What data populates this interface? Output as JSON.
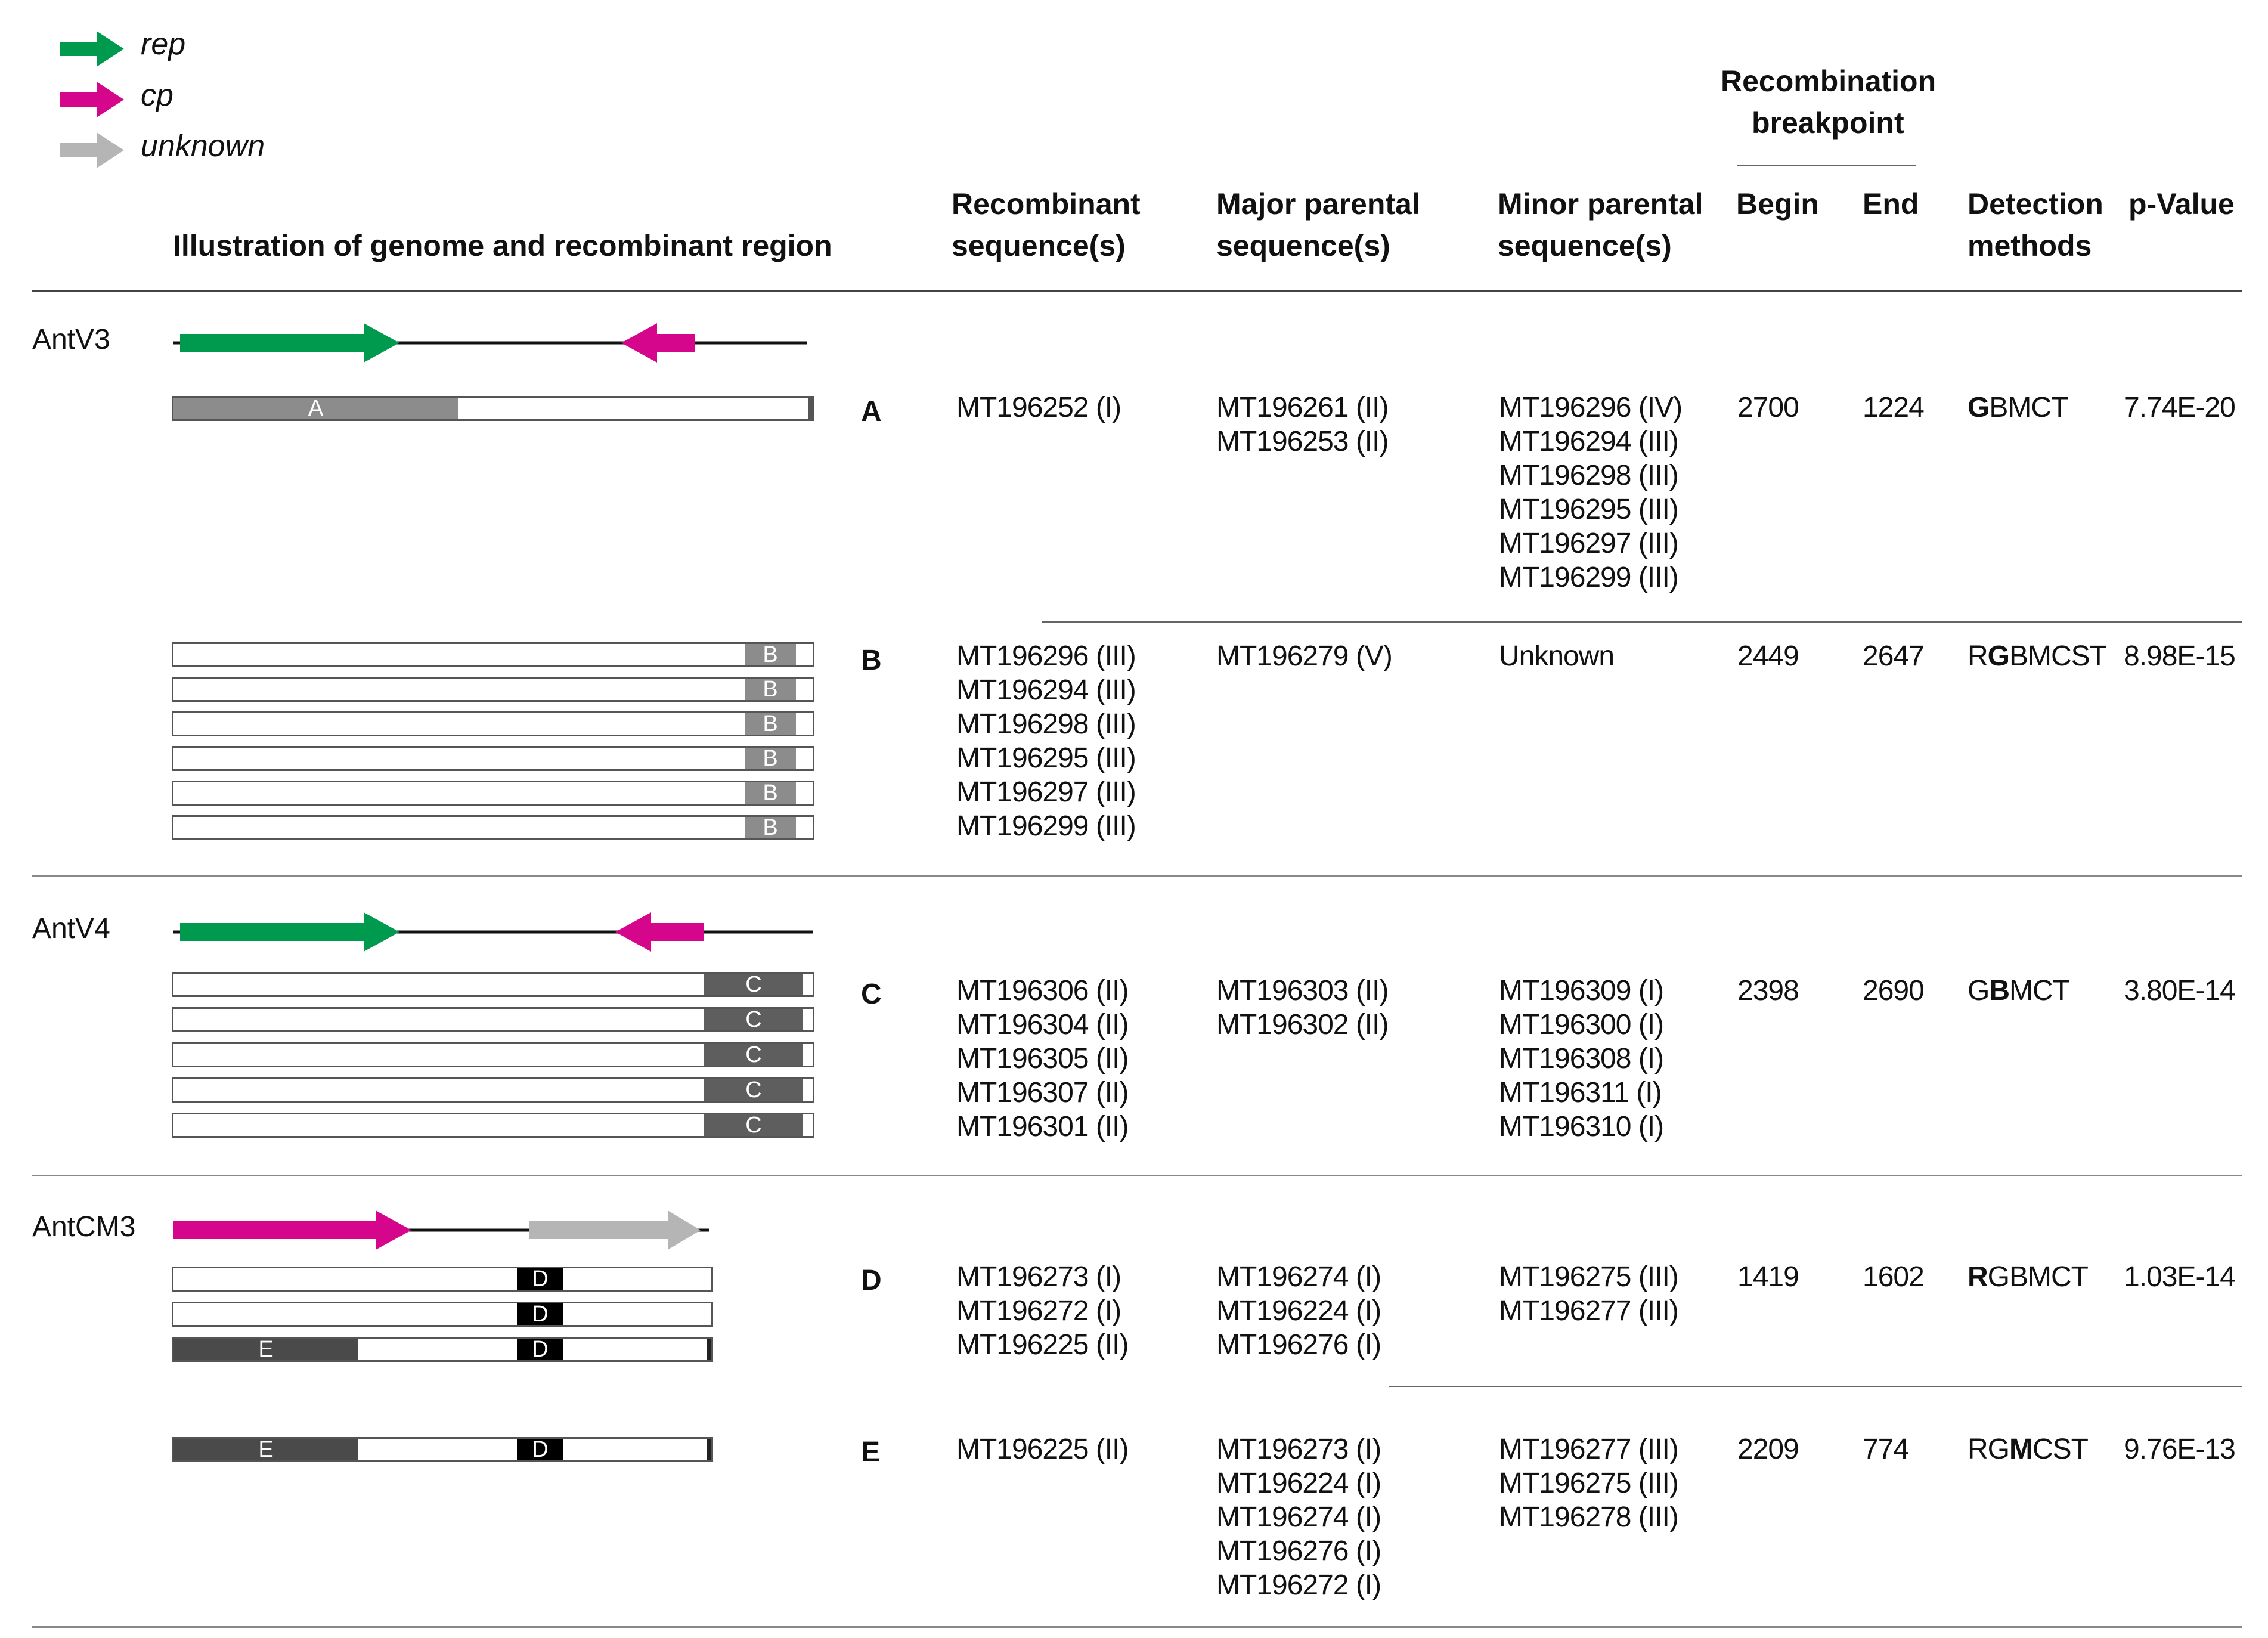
{
  "legend": {
    "items": [
      {
        "label": "rep",
        "color": "#009a4e"
      },
      {
        "label": "cp",
        "color": "#d6068c"
      },
      {
        "label": "unknown",
        "color": "#b5b5b5"
      }
    ]
  },
  "header": {
    "illustration": "Illustration of genome and recombinant region",
    "recombinant": [
      "Recombinant",
      "sequence(s)"
    ],
    "major": [
      "Major parental",
      "sequence(s)"
    ],
    "minor": [
      "Minor parental",
      "sequence(s)"
    ],
    "breakpoint": [
      "Recombination",
      "breakpoint"
    ],
    "begin": "Begin",
    "end": "End",
    "detection": [
      "Detection",
      "methods"
    ],
    "pvalue": "p-Value"
  },
  "viruses": [
    "AntV3",
    "AntV4",
    "AntCM3"
  ],
  "segment_labels": {
    "A": "A",
    "B": "B",
    "C": "C",
    "D": "D",
    "E": "E"
  },
  "rows": [
    {
      "event": "A",
      "recombinant": [
        "MT196252 (I)"
      ],
      "major": [
        "MT196261 (II)",
        "MT196253 (II)"
      ],
      "minor": [
        "MT196296 (IV)",
        "MT196294 (III)",
        "MT196298 (III)",
        "MT196295 (III)",
        "MT196297 (III)",
        "MT196299 (III)"
      ],
      "begin": "2700",
      "end": "1224",
      "methods": {
        "pre": "",
        "bold": "G",
        "post": "BMCT"
      },
      "pvalue": "7.74E-20"
    },
    {
      "event": "B",
      "recombinant": [
        "MT196296 (III)",
        "MT196294 (III)",
        "MT196298 (III)",
        "MT196295 (III)",
        "MT196297 (III)",
        "MT196299 (III)"
      ],
      "major": [
        "MT196279 (V)"
      ],
      "minor": [
        "Unknown"
      ],
      "begin": "2449",
      "end": "2647",
      "methods": {
        "pre": "R",
        "bold": "G",
        "post": "BMCST"
      },
      "pvalue": "8.98E-15"
    },
    {
      "event": "C",
      "recombinant": [
        "MT196306 (II)",
        "MT196304 (II)",
        "MT196305 (II)",
        "MT196307 (II)",
        "MT196301 (II)"
      ],
      "major": [
        "MT196303 (II)",
        "MT196302 (II)"
      ],
      "minor": [
        "MT196309 (I)",
        "MT196300 (I)",
        "MT196308 (I)",
        "MT196311 (I)",
        "MT196310 (I)"
      ],
      "begin": "2398",
      "end": "2690",
      "methods": {
        "pre": "G",
        "bold": "B",
        "post": "MCT"
      },
      "pvalue": "3.80E-14"
    },
    {
      "event": "D",
      "recombinant": [
        "MT196273 (I)",
        "MT196272 (I)",
        "MT196225 (II)"
      ],
      "major": [
        "MT196274 (I)",
        "MT196224 (I)",
        "MT196276 (I)"
      ],
      "minor": [
        "MT196275 (III)",
        "MT196277 (III)"
      ],
      "begin": "1419",
      "end": "1602",
      "methods": {
        "pre": "",
        "bold": "R",
        "post": "GBMCT"
      },
      "pvalue": "1.03E-14"
    },
    {
      "event": "E",
      "recombinant": [
        "MT196225 (II)"
      ],
      "major": [
        "MT196273 (I)",
        "MT196224 (I)",
        "MT196274 (I)",
        "MT196276 (I)",
        "MT196272 (I)"
      ],
      "minor": [
        "MT196277 (III)",
        "MT196275 (III)",
        "MT196278 (III)"
      ],
      "begin": "2209",
      "end": "774",
      "methods": {
        "pre": "RG",
        "bold": "M",
        "post": "CST"
      },
      "pvalue": "9.76E-13"
    }
  ]
}
